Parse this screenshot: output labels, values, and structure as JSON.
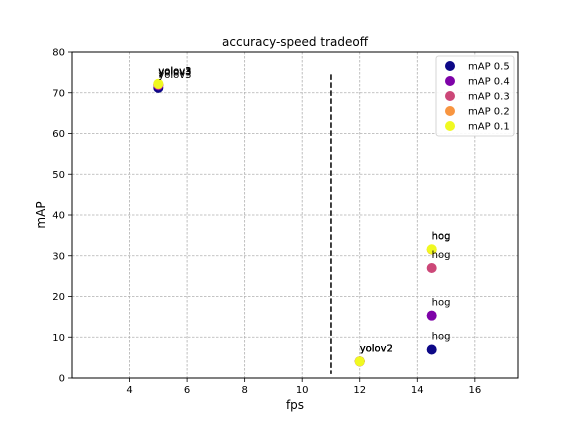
{
  "chart_data": {
    "type": "scatter",
    "title": "accuracy-speed tradeoff",
    "xlabel": "fps",
    "ylabel": "mAP",
    "xlim": [
      2.0,
      17.5
    ],
    "ylim": [
      0,
      80
    ],
    "xticks": [
      4,
      6,
      8,
      10,
      12,
      14,
      16
    ],
    "yticks": [
      0,
      10,
      20,
      30,
      40,
      50,
      60,
      70,
      80
    ],
    "grid": true,
    "legend_position": "top-right",
    "vline": {
      "x": 11,
      "y_from": 1,
      "y_to": 74.5,
      "style": "dashed"
    },
    "series": [
      {
        "name": "mAP 0.5",
        "color": "#0d0887",
        "points": [
          {
            "x": 5,
            "y": 71.2,
            "label": "yolov3"
          },
          {
            "x": 12,
            "y": 4.1,
            "label": "yolov2"
          },
          {
            "x": 14.5,
            "y": 7.0,
            "label": "hog"
          }
        ]
      },
      {
        "name": "mAP 0.4",
        "color": "#7e03a8",
        "points": [
          {
            "x": 5,
            "y": 71.8,
            "label": "yolov3"
          },
          {
            "x": 12,
            "y": 4.1,
            "label": "yolov2"
          },
          {
            "x": 14.5,
            "y": 15.3,
            "label": "hog"
          }
        ]
      },
      {
        "name": "mAP 0.3",
        "color": "#cc4778",
        "points": [
          {
            "x": 5,
            "y": 72.0,
            "label": "yolov3"
          },
          {
            "x": 12,
            "y": 4.1,
            "label": "yolov2"
          },
          {
            "x": 14.5,
            "y": 27.0,
            "label": "hog"
          }
        ]
      },
      {
        "name": "mAP 0.2",
        "color": "#f89540",
        "points": [
          {
            "x": 5,
            "y": 72.1,
            "label": "yolov3"
          },
          {
            "x": 12,
            "y": 4.1,
            "label": "yolov2"
          },
          {
            "x": 14.5,
            "y": 31.5,
            "label": "hog"
          }
        ]
      },
      {
        "name": "mAP 0.1",
        "color": "#f0f921",
        "points": [
          {
            "x": 5,
            "y": 72.2,
            "label": "yolov3"
          },
          {
            "x": 12,
            "y": 4.1,
            "label": "yolov2"
          },
          {
            "x": 14.5,
            "y": 31.6,
            "label": "hog"
          }
        ]
      }
    ]
  }
}
